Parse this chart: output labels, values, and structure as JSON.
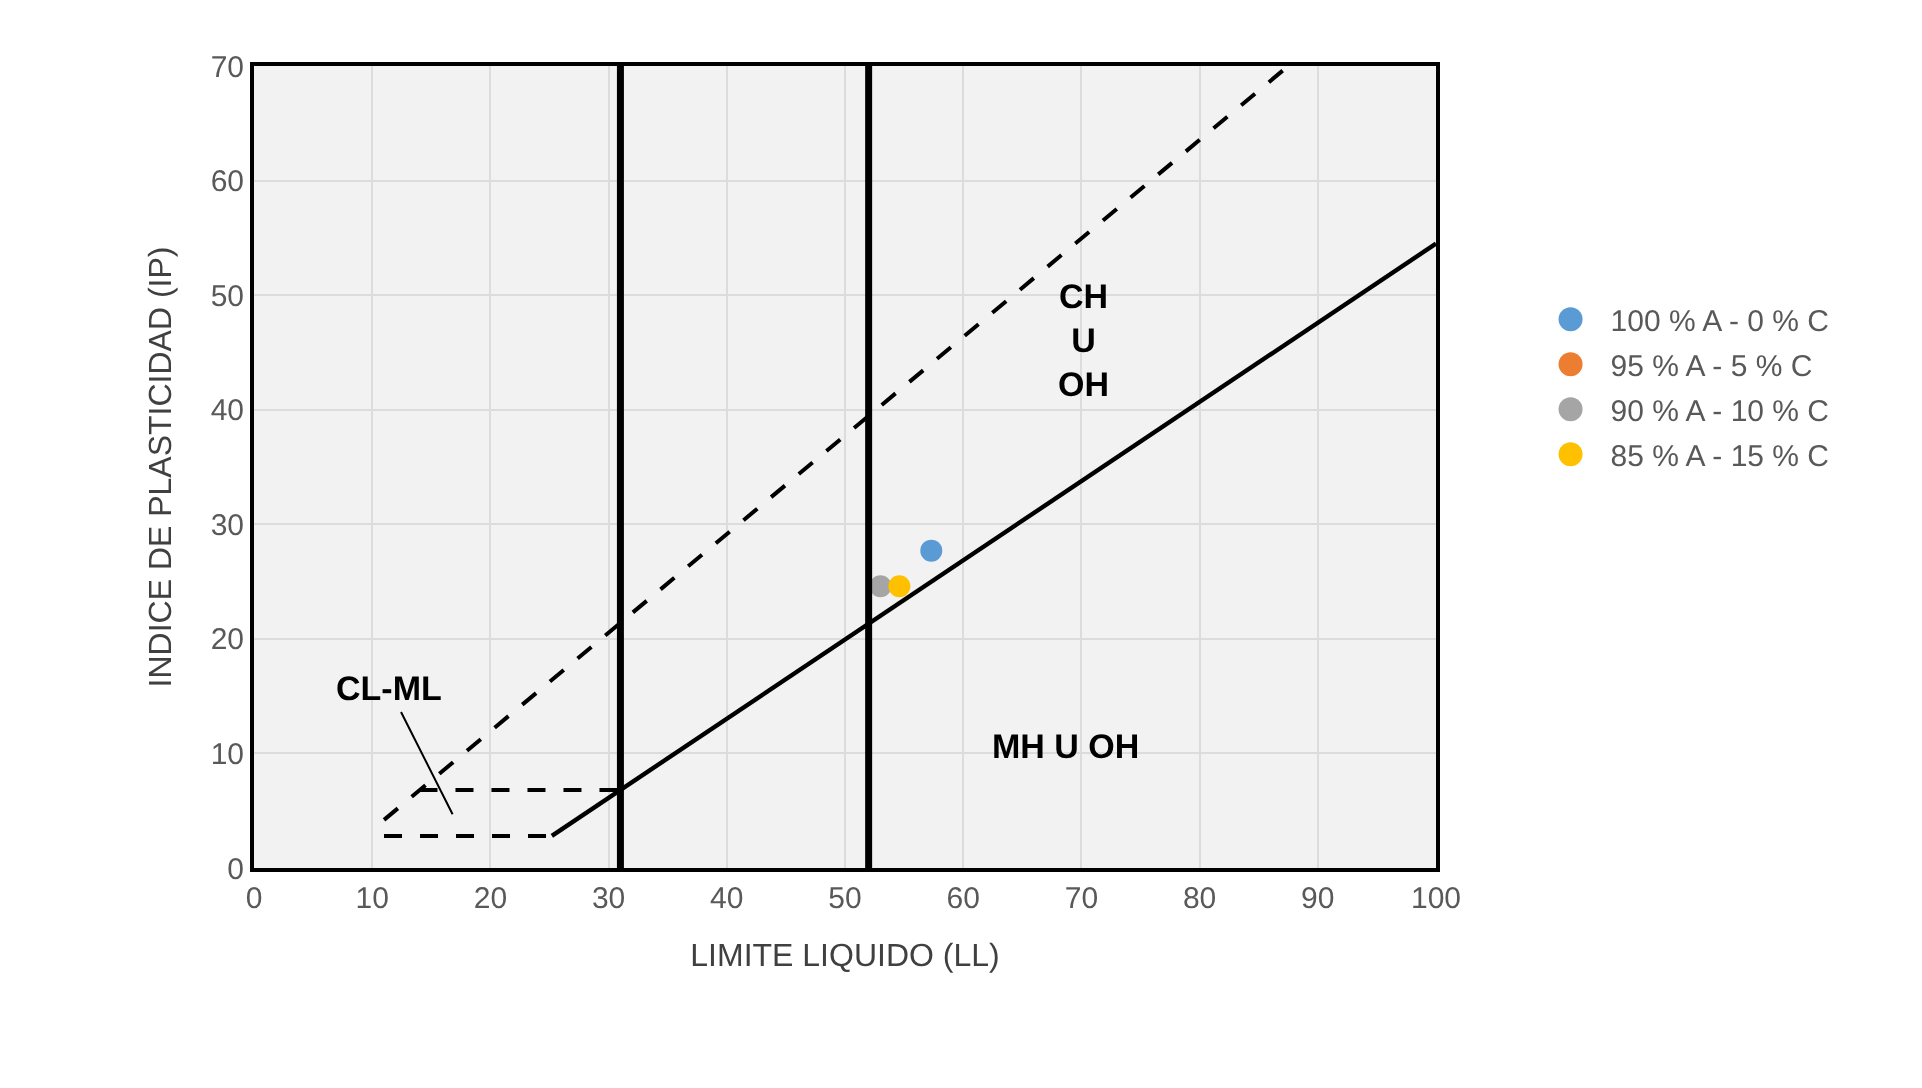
{
  "chart_data": {
    "type": "scatter",
    "xlabel": "LIMITE LIQUIDO (LL)",
    "ylabel": "INDICE DE PLASTICIDAD (IP)",
    "xlim": [
      0,
      100
    ],
    "xticks": [
      0,
      10,
      20,
      30,
      40,
      50,
      60,
      70,
      80,
      90,
      100
    ],
    "ylim": [
      0,
      70
    ],
    "yticks": [
      0,
      10,
      20,
      30,
      40,
      50,
      60,
      70
    ],
    "grid": true,
    "legend": "right",
    "marker": "circle",
    "series": [
      {
        "name": "100 % A - 0 % C",
        "color": "#5b9bd5",
        "x": [
          57.3
        ],
        "values": [
          27.7
        ]
      },
      {
        "name": "95 % A - 5 % C",
        "color": "#ed7d31",
        "x": [
          null
        ],
        "values": [
          null
        ]
      },
      {
        "name": "90 % A - 10 % C",
        "color": "#a5a5a5",
        "x": [
          53.0
        ],
        "values": [
          24.6
        ]
      },
      {
        "name": "85 % A - 15 % C",
        "color": "#ffc000",
        "x": [
          54.6
        ],
        "values": [
          24.6
        ]
      },
      {
        "type": "line",
        "color": "#000000",
        "line_style": "solid",
        "marker": "none",
        "x": [
          25.2,
          100
        ],
        "values": [
          2.8,
          54.5
        ]
      },
      {
        "type": "line",
        "color": "#000000",
        "line_style": "dashed",
        "marker": "none",
        "x": [
          11,
          87.5
        ],
        "values": [
          4.2,
          70
        ]
      },
      {
        "type": "line",
        "color": "#000000",
        "line_style": "dashed",
        "marker": "none",
        "x": [
          11,
          25.2
        ],
        "values": [
          2.8,
          2.8
        ]
      },
      {
        "type": "line",
        "color": "#000000",
        "line_style": "dashed",
        "marker": "none",
        "x": [
          14,
          31
        ],
        "values": [
          6.8,
          6.8
        ]
      },
      {
        "type": "line",
        "color": "#000000",
        "line_style": "solid",
        "marker": "none",
        "x": [
          31,
          31
        ],
        "values": [
          0,
          70
        ]
      },
      {
        "type": "line",
        "color": "#000000",
        "line_style": "solid",
        "marker": "none",
        "x": [
          52,
          52
        ],
        "values": [
          0,
          70
        ]
      }
    ],
    "annotations": [
      "CL-ML",
      "CH\nU\nOH",
      "MH U OH"
    ]
  }
}
